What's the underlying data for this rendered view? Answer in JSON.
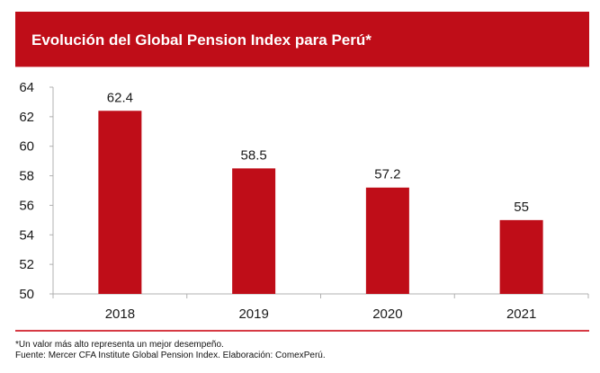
{
  "header": {
    "title": "Evolución del Global Pension Index para Perú*"
  },
  "colors": {
    "header_bg": "#bf0d18",
    "bar": "#bf0d18",
    "axis": "#b0b0b0",
    "rule": "#d63a44"
  },
  "chart_data": {
    "type": "bar",
    "title": "Evolución del Global Pension Index para Perú*",
    "xlabel": "",
    "ylabel": "",
    "categories": [
      "2018",
      "2019",
      "2020",
      "2021"
    ],
    "values": [
      62.4,
      58.5,
      57.2,
      55
    ],
    "data_labels": [
      "62.4",
      "58.5",
      "57.2",
      "55"
    ],
    "ylim": [
      50,
      64
    ],
    "yticks": [
      50,
      52,
      54,
      56,
      58,
      60,
      62,
      64
    ],
    "ytick_labels": [
      "50",
      "52",
      "54",
      "56",
      "58",
      "60",
      "62",
      "64"
    ],
    "grid": false,
    "legend": "none"
  },
  "footer": {
    "note": "*Un valor más alto representa un mejor desempeño.",
    "source": "Fuente: Mercer CFA Institute Global Pension Index. Elaboración: ComexPerú."
  }
}
